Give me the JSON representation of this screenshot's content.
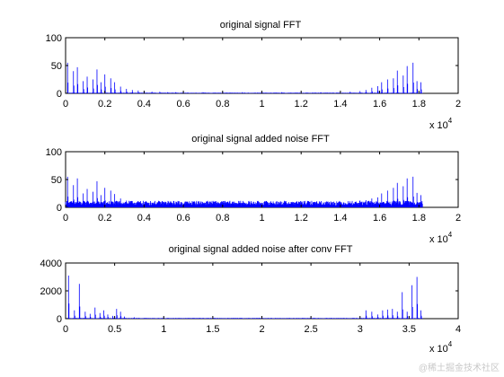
{
  "colors": {
    "signal": "#0000ff",
    "axes": "#000000",
    "background": "#ffffff",
    "watermark": "#c8c8c8"
  },
  "watermark": "@稀土掘金技术社区",
  "chart_data": [
    {
      "type": "line",
      "title": "original signal FFT",
      "xlim": [
        0,
        20000
      ],
      "ylim": [
        0,
        100
      ],
      "xticks": [
        "0",
        "0.2",
        "0.4",
        "0.6",
        "0.8",
        "1",
        "1.2",
        "1.4",
        "1.6",
        "1.8",
        "2"
      ],
      "yticks": [
        "0",
        "50",
        "100"
      ],
      "x_exponent_base": "x 10",
      "x_exponent_power": "4",
      "grid": false,
      "series": [
        {
          "signal_length": 18200,
          "noise_floor": 1,
          "peaks": [
            [
              100,
              55
            ],
            [
              400,
              40
            ],
            [
              600,
              47
            ],
            [
              900,
              22
            ],
            [
              1100,
              30
            ],
            [
              1400,
              25
            ],
            [
              1600,
              43
            ],
            [
              1800,
              20
            ],
            [
              2000,
              34
            ],
            [
              2300,
              27
            ],
            [
              2500,
              20
            ],
            [
              2800,
              12
            ],
            [
              3100,
              8
            ],
            [
              3400,
              6
            ],
            [
              3700,
              5
            ],
            [
              4000,
              4
            ],
            [
              4400,
              3
            ],
            [
              4800,
              3
            ],
            [
              5200,
              2
            ],
            [
              5600,
              2
            ],
            [
              6000,
              2
            ],
            [
              7000,
              2
            ],
            [
              8000,
              2
            ],
            [
              9000,
              2
            ],
            [
              10000,
              3
            ],
            [
              11000,
              2
            ],
            [
              12000,
              2
            ],
            [
              13000,
              2
            ],
            [
              14000,
              2
            ],
            [
              14500,
              3
            ],
            [
              15000,
              4
            ],
            [
              15300,
              6
            ],
            [
              15600,
              10
            ],
            [
              15900,
              13
            ],
            [
              16100,
              20
            ],
            [
              16400,
              25
            ],
            [
              16700,
              27
            ],
            [
              16900,
              41
            ],
            [
              17200,
              32
            ],
            [
              17400,
              49
            ],
            [
              17700,
              55
            ],
            [
              17900,
              22
            ],
            [
              18100,
              20
            ]
          ]
        }
      ]
    },
    {
      "type": "line",
      "title": "original signal added noise FFT",
      "xlim": [
        0,
        20000
      ],
      "ylim": [
        0,
        100
      ],
      "xticks": [
        "0",
        "0.2",
        "0.4",
        "0.6",
        "0.8",
        "1",
        "1.2",
        "1.4",
        "1.6",
        "1.8",
        "2"
      ],
      "yticks": [
        "0",
        "50",
        "100"
      ],
      "x_exponent_base": "x 10",
      "x_exponent_power": "4",
      "grid": false,
      "series": [
        {
          "signal_length": 18200,
          "noise_floor": 9,
          "peaks": [
            [
              100,
              55
            ],
            [
              400,
              40
            ],
            [
              600,
              52
            ],
            [
              900,
              25
            ],
            [
              1100,
              33
            ],
            [
              1400,
              28
            ],
            [
              1600,
              47
            ],
            [
              1800,
              22
            ],
            [
              2000,
              35
            ],
            [
              2300,
              30
            ],
            [
              2500,
              24
            ],
            [
              2800,
              16
            ],
            [
              3100,
              12
            ],
            [
              3400,
              11
            ],
            [
              15000,
              12
            ],
            [
              15300,
              13
            ],
            [
              15600,
              16
            ],
            [
              15900,
              18
            ],
            [
              16100,
              25
            ],
            [
              16400,
              30
            ],
            [
              16700,
              35
            ],
            [
              16900,
              44
            ],
            [
              17200,
              38
            ],
            [
              17400,
              52
            ],
            [
              17700,
              55
            ],
            [
              17900,
              26
            ],
            [
              18100,
              22
            ]
          ]
        }
      ]
    },
    {
      "type": "line",
      "title": "original signal added noise after conv FFT",
      "xlim": [
        0,
        40000
      ],
      "ylim": [
        0,
        4000
      ],
      "xticks": [
        "0",
        "0.5",
        "1",
        "1.5",
        "2",
        "2.5",
        "3",
        "3.5",
        "4"
      ],
      "yticks": [
        "0",
        "2000",
        "4000"
      ],
      "x_exponent_base": "x 10",
      "x_exponent_power": "4",
      "grid": false,
      "series": [
        {
          "signal_length": 36400,
          "noise_floor": 40,
          "peaks": [
            [
              300,
              3100
            ],
            [
              900,
              600
            ],
            [
              1400,
              2500
            ],
            [
              2000,
              500
            ],
            [
              2500,
              350
            ],
            [
              3000,
              800
            ],
            [
              3500,
              400
            ],
            [
              3900,
              600
            ],
            [
              4300,
              300
            ],
            [
              4800,
              200
            ],
            [
              5200,
              700
            ],
            [
              5600,
              500
            ],
            [
              6000,
              150
            ],
            [
              7000,
              100
            ],
            [
              10000,
              80
            ],
            [
              15000,
              80
            ],
            [
              20000,
              80
            ],
            [
              25000,
              80
            ],
            [
              30000,
              80
            ],
            [
              30600,
              600
            ],
            [
              31200,
              500
            ],
            [
              31800,
              300
            ],
            [
              32300,
              600
            ],
            [
              32800,
              650
            ],
            [
              33300,
              700
            ],
            [
              33800,
              500
            ],
            [
              34300,
              1900
            ],
            [
              34800,
              500
            ],
            [
              35300,
              2400
            ],
            [
              35800,
              3000
            ],
            [
              36200,
              600
            ]
          ]
        }
      ]
    }
  ]
}
